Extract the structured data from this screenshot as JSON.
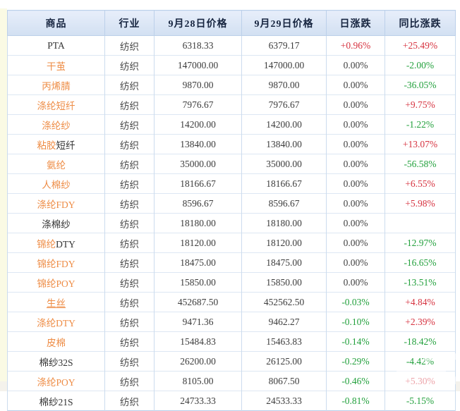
{
  "colors": {
    "link_orange": "#ee8c45",
    "up_red": "#d6323f",
    "down_green": "#22a03c",
    "flat_gray": "#3f3f3f",
    "header_bg_top": "#e7eefa",
    "header_bg_bottom": "#d2e0f2",
    "header_text": "#16243f",
    "border_blue": "#ccdcee",
    "left_strip": "#fafae4"
  },
  "table": {
    "columns": [
      {
        "key": "name",
        "label": "商品"
      },
      {
        "key": "industry",
        "label": "行业"
      },
      {
        "key": "price_0928",
        "label": "9月28日价格"
      },
      {
        "key": "price_0929",
        "label": "9月29日价格"
      },
      {
        "key": "daily_change",
        "label": "日涨跌"
      },
      {
        "key": "yoy_change",
        "label": "同比涨跌"
      }
    ],
    "rows": [
      {
        "name_link": "",
        "name_plain": "PTA",
        "underline": false,
        "industry": "纺织",
        "price_0928": "6318.33",
        "price_0929": "6379.17",
        "daily_change": "+0.96%",
        "daily_class": "up",
        "yoy_change": "+25.49%",
        "yoy_class": "up"
      },
      {
        "name_link": "干茧",
        "name_plain": "",
        "underline": false,
        "industry": "纺织",
        "price_0928": "147000.00",
        "price_0929": "147000.00",
        "daily_change": "0.00%",
        "daily_class": "flat",
        "yoy_change": "-2.00%",
        "yoy_class": "down"
      },
      {
        "name_link": "丙烯腈",
        "name_plain": "",
        "underline": false,
        "industry": "纺织",
        "price_0928": "9870.00",
        "price_0929": "9870.00",
        "daily_change": "0.00%",
        "daily_class": "flat",
        "yoy_change": "-36.05%",
        "yoy_class": "down"
      },
      {
        "name_link": "涤纶短纤",
        "name_plain": "",
        "underline": false,
        "industry": "纺织",
        "price_0928": "7976.67",
        "price_0929": "7976.67",
        "daily_change": "0.00%",
        "daily_class": "flat",
        "yoy_change": "+9.75%",
        "yoy_class": "up"
      },
      {
        "name_link": "涤纶纱",
        "name_plain": "",
        "underline": false,
        "industry": "纺织",
        "price_0928": "14200.00",
        "price_0929": "14200.00",
        "daily_change": "0.00%",
        "daily_class": "flat",
        "yoy_change": "-1.22%",
        "yoy_class": "down"
      },
      {
        "name_link": "粘胶",
        "name_plain": "短纤",
        "underline": false,
        "industry": "纺织",
        "price_0928": "13840.00",
        "price_0929": "13840.00",
        "daily_change": "0.00%",
        "daily_class": "flat",
        "yoy_change": "+13.07%",
        "yoy_class": "up"
      },
      {
        "name_link": "氨纶",
        "name_plain": "",
        "underline": false,
        "industry": "纺织",
        "price_0928": "35000.00",
        "price_0929": "35000.00",
        "daily_change": "0.00%",
        "daily_class": "flat",
        "yoy_change": "-56.58%",
        "yoy_class": "down"
      },
      {
        "name_link": "人棉纱",
        "name_plain": "",
        "underline": false,
        "industry": "纺织",
        "price_0928": "18166.67",
        "price_0929": "18166.67",
        "daily_change": "0.00%",
        "daily_class": "flat",
        "yoy_change": "+6.55%",
        "yoy_class": "up"
      },
      {
        "name_link": "涤纶FDY",
        "name_plain": "",
        "underline": false,
        "industry": "纺织",
        "price_0928": "8596.67",
        "price_0929": "8596.67",
        "daily_change": "0.00%",
        "daily_class": "flat",
        "yoy_change": "+5.98%",
        "yoy_class": "up"
      },
      {
        "name_link": "",
        "name_plain": "涤棉纱",
        "underline": false,
        "industry": "纺织",
        "price_0928": "18180.00",
        "price_0929": "18180.00",
        "daily_change": "0.00%",
        "daily_class": "flat",
        "yoy_change": "",
        "yoy_class": "empty"
      },
      {
        "name_link": "锦纶",
        "name_plain": "DTY",
        "underline": false,
        "industry": "纺织",
        "price_0928": "18120.00",
        "price_0929": "18120.00",
        "daily_change": "0.00%",
        "daily_class": "flat",
        "yoy_change": "-12.97%",
        "yoy_class": "down"
      },
      {
        "name_link": "锦纶FDY",
        "name_plain": "",
        "underline": false,
        "industry": "纺织",
        "price_0928": "18475.00",
        "price_0929": "18475.00",
        "daily_change": "0.00%",
        "daily_class": "flat",
        "yoy_change": "-16.65%",
        "yoy_class": "down"
      },
      {
        "name_link": "锦纶POY",
        "name_plain": "",
        "underline": false,
        "industry": "纺织",
        "price_0928": "15850.00",
        "price_0929": "15850.00",
        "daily_change": "0.00%",
        "daily_class": "flat",
        "yoy_change": "-13.51%",
        "yoy_class": "down"
      },
      {
        "name_link": "生丝",
        "name_plain": "",
        "underline": true,
        "industry": "纺织",
        "price_0928": "452687.50",
        "price_0929": "452562.50",
        "daily_change": "-0.03%",
        "daily_class": "down",
        "yoy_change": "+4.84%",
        "yoy_class": "up"
      },
      {
        "name_link": "涤纶DTY",
        "name_plain": "",
        "underline": false,
        "industry": "纺织",
        "price_0928": "9471.36",
        "price_0929": "9462.27",
        "daily_change": "-0.10%",
        "daily_class": "down",
        "yoy_change": "+2.39%",
        "yoy_class": "up"
      },
      {
        "name_link": "皮棉",
        "name_plain": "",
        "underline": false,
        "industry": "纺织",
        "price_0928": "15484.83",
        "price_0929": "15463.83",
        "daily_change": "-0.14%",
        "daily_class": "down",
        "yoy_change": "-18.42%",
        "yoy_class": "down"
      },
      {
        "name_link": "",
        "name_plain": "棉纱32S",
        "underline": false,
        "industry": "纺织",
        "price_0928": "26200.00",
        "price_0929": "26125.00",
        "daily_change": "-0.29%",
        "daily_class": "down",
        "yoy_change": "-4.42%",
        "yoy_class": "down"
      },
      {
        "name_link": "涤纶POY",
        "name_plain": "",
        "underline": false,
        "industry": "纺织",
        "price_0928": "8105.00",
        "price_0929": "8067.50",
        "daily_change": "-0.46%",
        "daily_class": "down",
        "yoy_change": "+5.30%",
        "yoy_class": "up"
      },
      {
        "name_link": "",
        "name_plain": "棉纱21S",
        "underline": false,
        "industry": "纺织",
        "price_0928": "24733.33",
        "price_0929": "24533.33",
        "daily_change": "-0.81%",
        "daily_class": "down",
        "yoy_change": "-5.15%",
        "yoy_class": "down"
      }
    ]
  }
}
